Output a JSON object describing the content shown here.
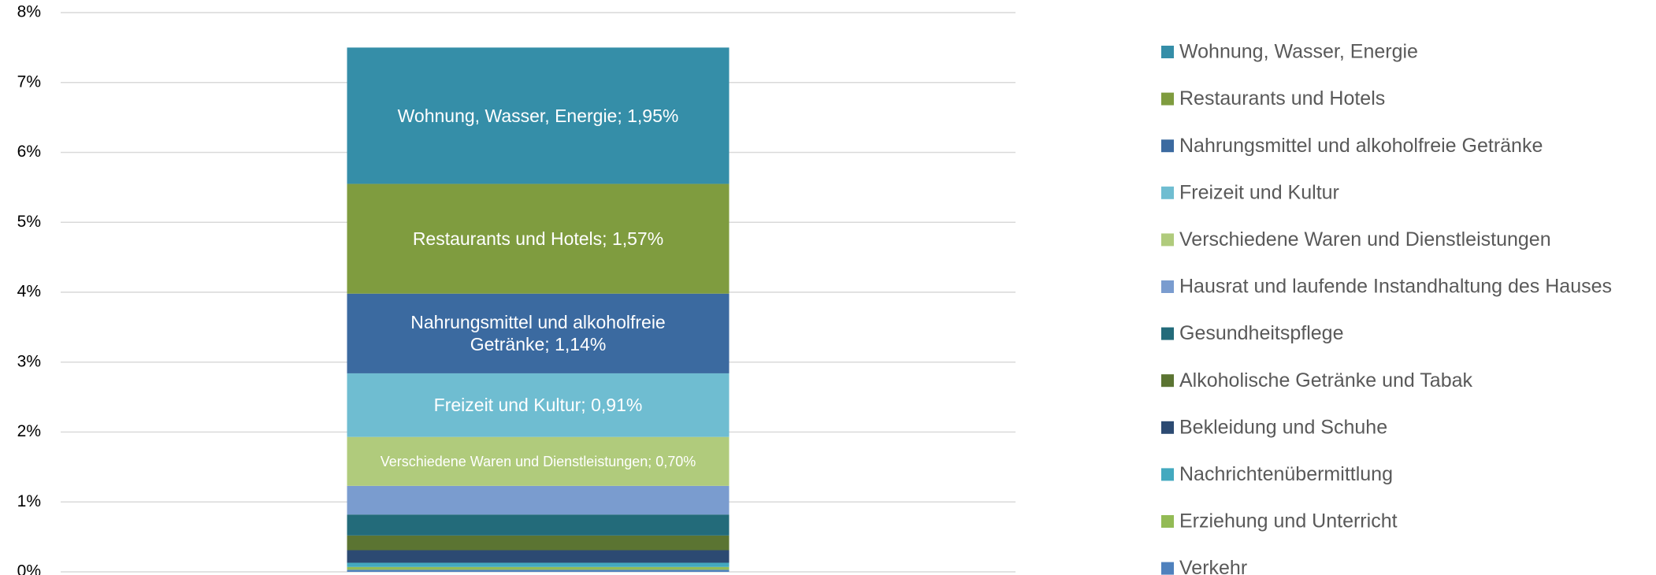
{
  "chart_data": {
    "type": "stacked_bar",
    "categories": [
      null
    ],
    "ylim": [
      0,
      8
    ],
    "yticks": [
      {
        "value": 0,
        "label": "0%"
      },
      {
        "value": 1,
        "label": "1%"
      },
      {
        "value": 2,
        "label": "2%"
      },
      {
        "value": 3,
        "label": "3%"
      },
      {
        "value": 4,
        "label": "4%"
      },
      {
        "value": 5,
        "label": "5%"
      },
      {
        "value": 6,
        "label": "6%"
      },
      {
        "value": 7,
        "label": "7%"
      },
      {
        "value": 8,
        "label": "8%"
      }
    ],
    "grid": true,
    "legend": "right",
    "series": [
      {
        "name": "Wohnung, Wasser, Energie",
        "color": "#358ea8",
        "values": [
          1.95
        ],
        "value_labels": [
          "Wohnung, Wasser, Energie; 1,95%"
        ]
      },
      {
        "name": "Restaurants und Hotels",
        "color": "#7f9c3f",
        "values": [
          1.57
        ],
        "value_labels": [
          "Restaurants und Hotels; 1,57%"
        ]
      },
      {
        "name": "Nahrungsmittel und alkoholfreie Getränke",
        "color": "#3b6aa0",
        "values": [
          1.14
        ],
        "value_labels": [
          "Nahrungsmittel und alkoholfreie Getränke; 1,14%"
        ]
      },
      {
        "name": "Freizeit und Kultur",
        "color": "#6fbdd1",
        "values": [
          0.91
        ],
        "value_labels": [
          "Freizeit und Kultur; 0,91%"
        ]
      },
      {
        "name": "Verschiedene Waren und Dienstleistungen",
        "color": "#b0cb7c",
        "values": [
          0.7
        ],
        "value_labels": [
          "Verschiedene Waren und Dienstleistungen; 0,70%"
        ]
      },
      {
        "name": "Hausrat und laufende Instandhaltung des Hauses",
        "color": "#7a9ccf",
        "values": [
          0.41
        ]
      },
      {
        "name": "Gesundheitspflege",
        "color": "#236b7a",
        "values": [
          0.3
        ]
      },
      {
        "name": "Alkoholische Getränke und Tabak",
        "color": "#5b7432",
        "values": [
          0.21
        ]
      },
      {
        "name": "Bekleidung und Schuhe",
        "color": "#2c4a72",
        "values": [
          0.18
        ]
      },
      {
        "name": "Nachrichtenübermittlung",
        "color": "#43a9bf",
        "values": [
          0.06
        ]
      },
      {
        "name": "Erziehung und Unterricht",
        "color": "#93bb55",
        "values": [
          0.04
        ]
      },
      {
        "name": "Verkehr",
        "color": "#4f81bd",
        "values": [
          0.03
        ]
      }
    ]
  }
}
